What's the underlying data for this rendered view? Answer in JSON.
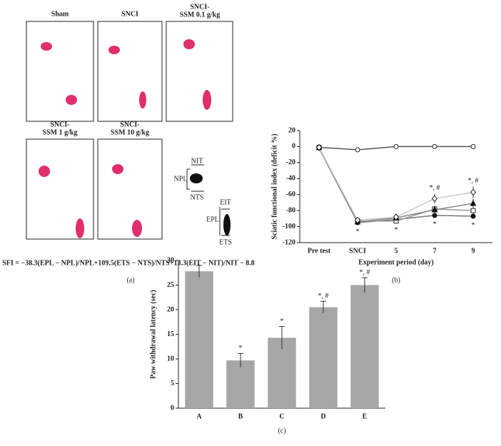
{
  "panel_a": {
    "labels": [
      [
        "Sham"
      ],
      [
        "SNCI"
      ],
      [
        "SNCI-",
        "SSM 0.1 g/kg"
      ],
      [
        "SNCI-",
        "SSM 1 g/kg"
      ],
      [
        "SNCI-",
        "SSM 10 g/kg"
      ]
    ],
    "diagram_labels": [
      "NIT",
      "NPL",
      "NTS",
      "EIT",
      "EPL",
      "ETS"
    ],
    "formula": "SFI = −38.3(EPL − NPL)/NPL+109.5(ETS − NTS)/NTS+13.3(EIT − NIT)/NIT − 8.8",
    "caption": "(a)"
  },
  "chart_data": [
    {
      "type": "line",
      "caption": "(b)",
      "xlabel": "Experiment period (day)",
      "ylabel": "Sciatic functional index (deficit %)",
      "categories": [
        "Pre test",
        "SNCI",
        "5",
        "7",
        "9"
      ],
      "ylim": [
        -120,
        20
      ],
      "yticks": [
        -120,
        -100,
        -80,
        -60,
        -40,
        -20,
        0,
        20
      ],
      "series": [
        {
          "color": "#555555",
          "marker": "circle-open",
          "values": [
            -1,
            -4,
            0,
            0,
            0
          ],
          "errors": [
            3,
            3,
            2,
            1,
            1
          ]
        },
        {
          "color": "#777777",
          "marker": "circle",
          "values": [
            -2,
            -95,
            -91,
            -86,
            -87
          ],
          "errors": [
            3,
            2,
            4,
            3,
            3
          ]
        },
        {
          "color": "#999999",
          "marker": "square-open",
          "values": [
            -1,
            -93,
            -93,
            -78,
            -80
          ],
          "errors": [
            3,
            2,
            3,
            4,
            5
          ]
        },
        {
          "color": "#8a8a8a",
          "marker": "triangle",
          "values": [
            -1,
            -94,
            -89,
            -79,
            -71
          ],
          "errors": [
            3,
            2,
            4,
            5,
            6
          ]
        },
        {
          "color": "#c8c8c8",
          "marker": "diamond-open",
          "values": [
            -1,
            -92,
            -88,
            -65,
            -57
          ],
          "errors": [
            3,
            2,
            4,
            6,
            7
          ]
        }
      ],
      "annotations_below": [
        null,
        "*",
        "*",
        "*",
        "*"
      ],
      "annotations_above": [
        null,
        null,
        null,
        "*, #",
        "*, #"
      ]
    },
    {
      "type": "bar",
      "caption": "(c)",
      "ylabel": "Paw withdrawal latency (sec)",
      "categories": [
        "A",
        "B",
        "C",
        "D",
        "E"
      ],
      "values": [
        27.8,
        9.7,
        14.3,
        20.5,
        25
      ],
      "errors": [
        1.2,
        1.4,
        2.3,
        1.2,
        1.5
      ],
      "color": "#a6a6a6",
      "ylim": [
        0,
        30
      ],
      "yticks": [
        0,
        5,
        10,
        15,
        20,
        25,
        30
      ],
      "annotations": [
        null,
        "*",
        "*",
        "*, #",
        "*, #"
      ]
    }
  ]
}
